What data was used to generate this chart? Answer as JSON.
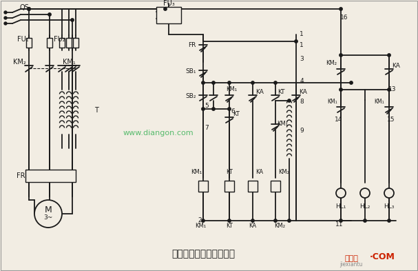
{
  "title": "自耦变压器降压控制电路",
  "bg_color": "#f2ede3",
  "line_color": "#1a1a1a",
  "watermark": "www.diangon.com",
  "watermark_color": "#22aa44",
  "brand_text": "接线图",
  "brand_color": "#cc2200",
  "brand_sub": "jiexiantu",
  "brand_com": "·COM",
  "figsize": [
    6.07,
    3.93
  ],
  "dpi": 100
}
